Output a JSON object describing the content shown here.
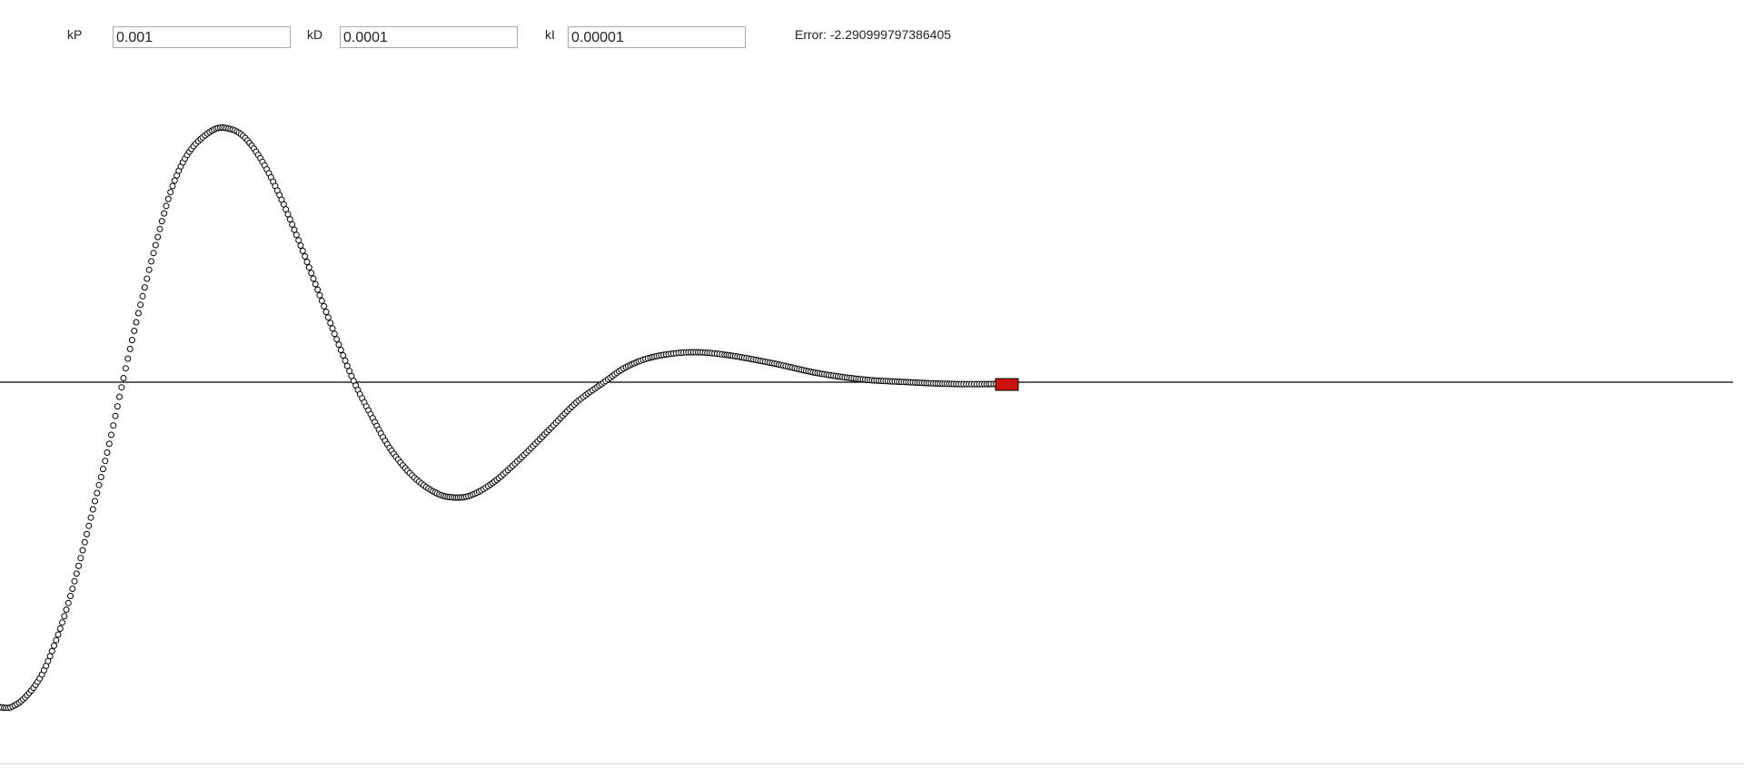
{
  "controls": {
    "kp": {
      "label": "kP",
      "value": "0.001"
    },
    "kd": {
      "label": "kD",
      "value": "0.0001"
    },
    "ki": {
      "label": "kI",
      "value": "0.00001"
    }
  },
  "status": {
    "error_label": "Error:",
    "error_value": "-2.290999797386405"
  },
  "colors": {
    "trail_stroke": "#000000",
    "trail_fill": "#ffffff",
    "target_line": "#000000",
    "vehicle": "#cc1111"
  }
}
